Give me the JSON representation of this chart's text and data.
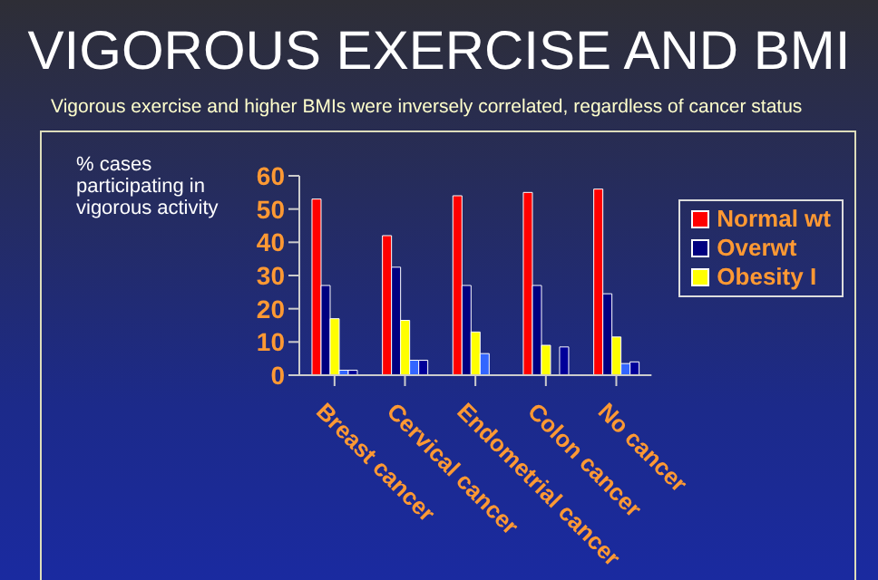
{
  "chart_data": {
    "type": "bar",
    "title": "VIGOROUS EXERCISE AND BMI",
    "subtitle": "Vigorous exercise and higher BMIs were inversely correlated, regardless of cancer status",
    "ylabel": "% cases participating in vigorous activity",
    "categories": [
      "Breast cancer",
      "Cervical cancer",
      "Endometrial cancer",
      "Colon cancer",
      "No cancer"
    ],
    "series": [
      {
        "name": "Normal wt",
        "color": "#ff0000",
        "values": [
          53,
          42,
          54,
          55,
          56
        ]
      },
      {
        "name": "Overwt",
        "color": "#000080",
        "values": [
          27,
          32.5,
          27,
          27,
          24.5
        ]
      },
      {
        "name": "Obesity I",
        "color": "#ffff00",
        "values": [
          17,
          16.5,
          13,
          9,
          11.5
        ]
      },
      {
        "color": "#3366ff",
        "values": [
          1.5,
          4.5,
          6.5,
          null,
          3.5
        ]
      },
      {
        "color": "#000099",
        "values": [
          1.5,
          4.5,
          null,
          8.5,
          4
        ]
      }
    ],
    "ylim": [
      0,
      60
    ],
    "yticks": [
      0,
      10,
      20,
      30,
      40,
      50,
      60
    ],
    "grid": false,
    "legend": "right"
  }
}
